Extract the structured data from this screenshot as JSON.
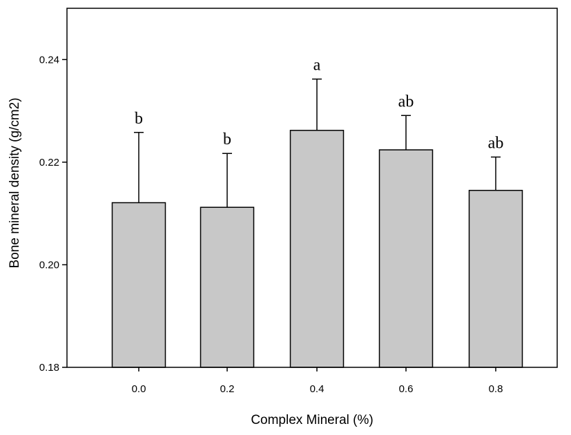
{
  "chart_data": {
    "type": "bar",
    "title": "",
    "xlabel": "Complex Mineral (%)",
    "ylabel": "Bone mineral density (g/cm2)",
    "categories": [
      "0.0",
      "0.2",
      "0.4",
      "0.6",
      "0.8"
    ],
    "values": [
      0.2121,
      0.2112,
      0.2262,
      0.2224,
      0.2145
    ],
    "error_upper": [
      0.2258,
      0.2217,
      0.2362,
      0.2291,
      0.221
    ],
    "significance_labels": [
      "b",
      "b",
      "a",
      "ab",
      "ab"
    ],
    "ylim": [
      0.18,
      0.25
    ],
    "yticks": [
      0.18,
      0.2,
      0.22,
      0.24
    ],
    "ytick_labels": [
      "0.18",
      "0.20",
      "0.22",
      "0.24"
    ],
    "grid": false,
    "legend": "none",
    "bar_color": "#c8c8c8",
    "edge_color": "#000000"
  }
}
